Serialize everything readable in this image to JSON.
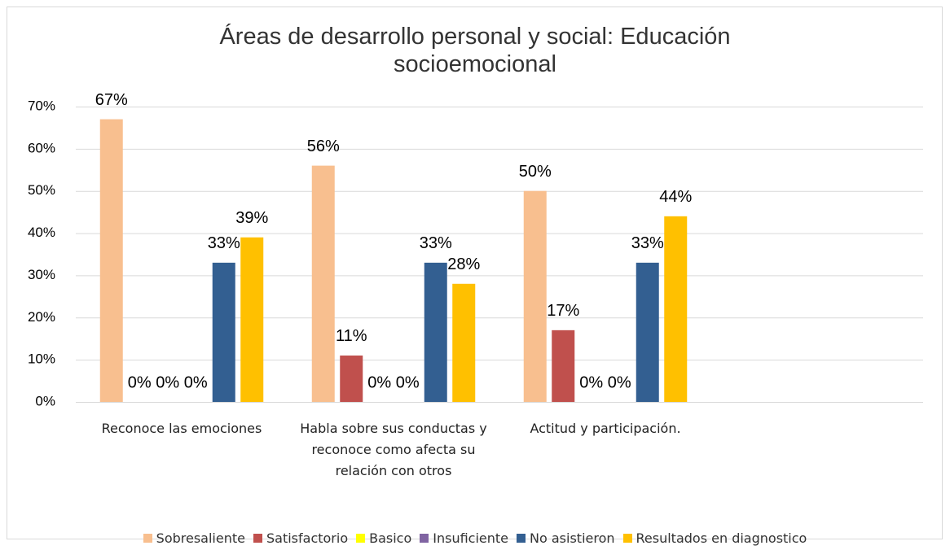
{
  "chart_data": {
    "type": "bar",
    "title": "Áreas de desarrollo personal y social: Educación socioemocional",
    "categories": [
      "Reconoce las emociones",
      "Habla sobre sus conductas y reconoce como afecta su relación con otros",
      "Actitud y participación.",
      null
    ],
    "series": [
      {
        "name": "Sobresaliente",
        "color": "#F8BF8F",
        "values": [
          67,
          56,
          50,
          null
        ],
        "value_labels": [
          "67%",
          "56%",
          "50%",
          null
        ]
      },
      {
        "name": "Satisfactorio",
        "color": "#C0504D",
        "values": [
          0,
          11,
          17,
          null
        ],
        "value_labels": [
          "0%",
          "11%",
          "17%",
          null
        ]
      },
      {
        "name": "Basico",
        "color": "#FFFF00",
        "values": [
          0,
          0,
          0,
          null
        ],
        "value_labels": [
          "0%",
          "0%",
          "0%",
          null
        ]
      },
      {
        "name": "Insuficiente",
        "color": "#8064A2",
        "values": [
          0,
          0,
          0,
          null
        ],
        "value_labels": [
          "0%",
          "0%",
          "0%",
          null
        ]
      },
      {
        "name": "No asistieron",
        "color": "#335F91",
        "values": [
          33,
          33,
          33,
          null
        ],
        "value_labels": [
          "33%",
          "33%",
          "33%",
          null
        ]
      },
      {
        "name": "Resultados en diagnostico",
        "color": "#FFC000",
        "values": [
          39,
          28,
          44,
          null
        ],
        "value_labels": [
          "39%",
          "28%",
          "44%",
          null
        ]
      }
    ],
    "ylim": [
      0,
      70
    ],
    "yticks": [
      {
        "value": 0,
        "label": "0%"
      },
      {
        "value": 10,
        "label": "10%"
      },
      {
        "value": 20,
        "label": "20%"
      },
      {
        "value": 30,
        "label": "30%"
      },
      {
        "value": 40,
        "label": "40%"
      },
      {
        "value": 50,
        "label": "50%"
      },
      {
        "value": 60,
        "label": "60%"
      },
      {
        "value": 70,
        "label": "70%"
      }
    ],
    "grid": true,
    "legend": "bottom"
  }
}
